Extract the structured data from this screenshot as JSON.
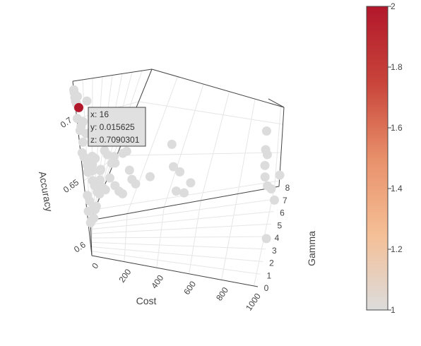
{
  "chart_data": {
    "type": "scatter3d",
    "axes": {
      "x": {
        "title": "Cost",
        "ticks": [
          "0",
          "200",
          "400",
          "600",
          "800",
          "1000"
        ],
        "range": [
          0,
          1024
        ]
      },
      "y": {
        "title": "Gamma",
        "ticks": [
          "0",
          "1",
          "2",
          "3",
          "4",
          "5",
          "6",
          "7",
          "8"
        ],
        "range": [
          0,
          8
        ]
      },
      "z": {
        "title": "Accuracy",
        "ticks": [
          "0.6",
          "0.65",
          "0.7"
        ],
        "range": [
          0.59,
          0.73
        ]
      }
    },
    "colorbar": {
      "ticks": [
        "1",
        "1.2",
        "1.4",
        "1.6",
        "1.8",
        "2"
      ],
      "range": [
        1,
        2
      ],
      "colors": [
        "#dcdcdc",
        "#f5bf96",
        "#e8906a",
        "#c8443a",
        "#b2182b"
      ]
    },
    "point_color": "#dcdcdc",
    "highlight_color": "#b2182b",
    "hover": {
      "x_text": "x: 16",
      "y_text": "y: 0.015625",
      "z_text": "z: 0.7090301",
      "x": 16,
      "y": 0.015625,
      "z": 0.7090301
    },
    "points": [
      [
        0.25,
        0.004,
        0.723
      ],
      [
        0.5,
        0.008,
        0.721
      ],
      [
        1,
        0.016,
        0.717
      ],
      [
        2,
        0.03,
        0.714
      ],
      [
        4,
        0.06,
        0.712
      ],
      [
        8,
        0.12,
        0.709
      ],
      [
        0.25,
        0.25,
        0.672
      ],
      [
        0.5,
        0.5,
        0.668
      ],
      [
        1,
        1,
        0.664
      ],
      [
        2,
        2,
        0.658
      ],
      [
        4,
        4,
        0.649
      ],
      [
        8,
        8,
        0.643
      ],
      [
        0.25,
        2,
        0.612
      ],
      [
        0.5,
        4,
        0.607
      ],
      [
        1,
        8,
        0.603
      ],
      [
        2,
        0.5,
        0.637
      ],
      [
        4,
        1,
        0.631
      ],
      [
        8,
        2,
        0.622
      ],
      [
        16,
        0.004,
        0.718
      ],
      [
        16,
        0.06,
        0.694
      ],
      [
        16,
        0.5,
        0.656
      ],
      [
        16,
        2,
        0.641
      ],
      [
        16,
        8,
        0.618
      ],
      [
        16,
        4,
        0.628
      ],
      [
        32,
        0.004,
        0.698
      ],
      [
        32,
        0.25,
        0.688
      ],
      [
        32,
        1,
        0.668
      ],
      [
        32,
        4,
        0.662
      ],
      [
        32,
        8,
        0.652
      ],
      [
        32,
        2,
        0.636
      ],
      [
        64,
        0.004,
        0.715
      ],
      [
        64,
        0.12,
        0.69
      ],
      [
        64,
        0.5,
        0.668
      ],
      [
        64,
        2,
        0.64
      ],
      [
        64,
        8,
        0.621
      ],
      [
        64,
        4,
        0.655
      ],
      [
        128,
        0.004,
        0.703
      ],
      [
        128,
        0.25,
        0.676
      ],
      [
        128,
        1,
        0.652
      ],
      [
        128,
        4,
        0.631
      ],
      [
        128,
        8,
        0.612
      ],
      [
        128,
        2,
        0.667
      ],
      [
        256,
        0.004,
        0.7
      ],
      [
        256,
        0.12,
        0.678
      ],
      [
        256,
        0.5,
        0.662
      ],
      [
        256,
        2,
        0.646
      ],
      [
        256,
        8,
        0.627
      ],
      [
        256,
        1,
        0.653
      ],
      [
        512,
        0.004,
        0.688
      ],
      [
        512,
        0.25,
        0.67
      ],
      [
        512,
        1,
        0.648
      ],
      [
        512,
        4,
        0.632
      ],
      [
        512,
        8,
        0.615
      ],
      [
        512,
        2,
        0.66
      ],
      [
        1024,
        0.004,
        0.706
      ],
      [
        1024,
        0.06,
        0.692
      ],
      [
        1024,
        0.5,
        0.67
      ],
      [
        1024,
        2,
        0.656
      ],
      [
        1024,
        4,
        0.64
      ],
      [
        1024,
        8,
        0.61
      ],
      [
        1024,
        6,
        0.605
      ],
      [
        1024,
        3,
        0.6
      ],
      [
        1024,
        1,
        0.686
      ],
      [
        1024,
        0.12,
        0.68
      ],
      [
        0.25,
        0.06,
        0.7
      ],
      [
        0.5,
        0.25,
        0.69
      ],
      [
        1,
        0.5,
        0.68
      ],
      [
        2,
        1,
        0.655
      ],
      [
        4,
        2,
        0.645
      ],
      [
        8,
        4,
        0.64
      ],
      [
        0.25,
        1,
        0.66
      ],
      [
        0.5,
        2,
        0.653
      ],
      [
        1,
        4,
        0.648
      ],
      [
        2,
        8,
        0.6
      ],
      [
        4,
        0.25,
        0.625
      ],
      [
        8,
        0.5,
        0.615
      ]
    ]
  }
}
